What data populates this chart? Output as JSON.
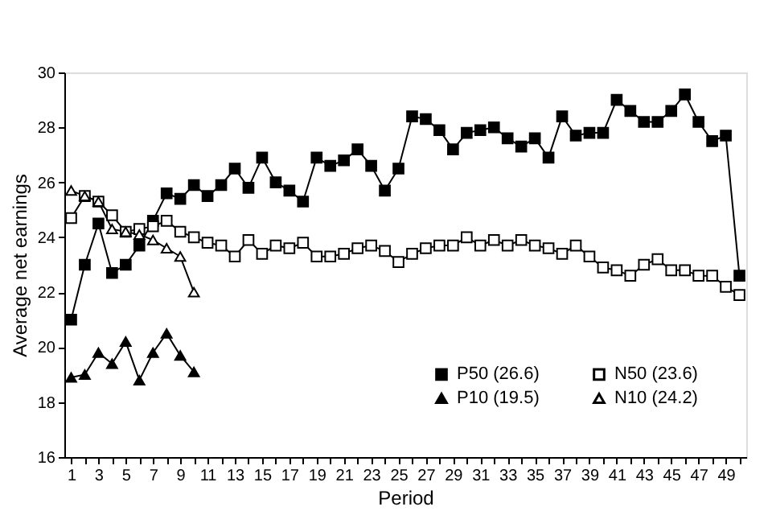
{
  "chart_data": {
    "type": "line",
    "xlabel": "Period",
    "ylabel": "Average net earnings",
    "xlim": [
      0.5,
      50.5
    ],
    "ylim": [
      16,
      30
    ],
    "yticks": [
      16,
      18,
      20,
      22,
      24,
      26,
      28,
      30
    ],
    "xticks": [
      1,
      {
        "value": 2,
        "label": null
      },
      3,
      {
        "value": 4,
        "label": null
      },
      5,
      {
        "value": 6,
        "label": null
      },
      7,
      {
        "value": 8,
        "label": null
      },
      9,
      {
        "value": 10,
        "label": null
      },
      11,
      {
        "value": 12,
        "label": null
      },
      13,
      {
        "value": 14,
        "label": null
      },
      15,
      {
        "value": 16,
        "label": null
      },
      17,
      {
        "value": 18,
        "label": null
      },
      19,
      {
        "value": 20,
        "label": null
      },
      21,
      {
        "value": 22,
        "label": null
      },
      23,
      {
        "value": 24,
        "label": null
      },
      25,
      {
        "value": 26,
        "label": null
      },
      27,
      {
        "value": 28,
        "label": null
      },
      29,
      {
        "value": 30,
        "label": null
      },
      31,
      {
        "value": 32,
        "label": null
      },
      33,
      {
        "value": 34,
        "label": null
      },
      35,
      {
        "value": 36,
        "label": null
      },
      37,
      {
        "value": 38,
        "label": null
      },
      39,
      {
        "value": 40,
        "label": null
      },
      41,
      {
        "value": 42,
        "label": null
      },
      43,
      {
        "value": 44,
        "label": null
      },
      45,
      {
        "value": 46,
        "label": null
      },
      47,
      {
        "value": 48,
        "label": null
      },
      49,
      {
        "value": 50,
        "label": null
      }
    ],
    "grid": false,
    "legend": "bottom right",
    "line_style": "solid",
    "series": [
      {
        "name": "P50 (26.6)",
        "color": "#000000",
        "marker": "square",
        "x": [
          1,
          2,
          3,
          4,
          5,
          6,
          7,
          8,
          9,
          10,
          11,
          12,
          13,
          14,
          15,
          16,
          17,
          18,
          19,
          20,
          21,
          22,
          23,
          24,
          25,
          26,
          27,
          28,
          29,
          30,
          31,
          32,
          33,
          34,
          35,
          36,
          37,
          38,
          39,
          40,
          41,
          42,
          43,
          44,
          45,
          46,
          47,
          48,
          49,
          50
        ],
        "values": [
          21.0,
          23.0,
          24.5,
          22.7,
          23.0,
          23.7,
          24.6,
          25.6,
          25.4,
          25.9,
          25.5,
          25.9,
          26.5,
          25.8,
          26.9,
          26.0,
          25.7,
          25.3,
          26.9,
          26.6,
          26.8,
          27.2,
          26.6,
          25.7,
          26.5,
          28.4,
          28.3,
          27.9,
          27.2,
          27.8,
          27.9,
          28.0,
          27.6,
          27.3,
          27.6,
          26.9,
          28.4,
          27.7,
          27.8,
          27.8,
          29.0,
          28.6,
          28.2,
          28.2,
          28.6,
          29.2,
          28.2,
          27.5,
          27.7,
          22.6
        ]
      },
      {
        "name": "P10 (19.5)",
        "color": "#000000",
        "marker": "triangle",
        "x": [
          1,
          2,
          3,
          4,
          5,
          6,
          7,
          8,
          9,
          10
        ],
        "values": [
          18.9,
          19.0,
          19.8,
          19.4,
          20.2,
          18.8,
          19.8,
          20.5,
          19.7,
          19.1
        ]
      },
      {
        "name": "N50 (23.6)",
        "color": "#ffffff",
        "marker": "square",
        "x": [
          1,
          2,
          3,
          4,
          5,
          6,
          7,
          8,
          9,
          10,
          11,
          12,
          13,
          14,
          15,
          16,
          17,
          18,
          19,
          20,
          21,
          22,
          23,
          24,
          25,
          26,
          27,
          28,
          29,
          30,
          31,
          32,
          33,
          34,
          35,
          36,
          37,
          38,
          39,
          40,
          41,
          42,
          43,
          44,
          45,
          46,
          47,
          48,
          49,
          50
        ],
        "values": [
          24.7,
          25.5,
          25.3,
          24.8,
          24.2,
          24.3,
          24.4,
          24.6,
          24.2,
          24.0,
          23.8,
          23.7,
          23.3,
          23.9,
          23.4,
          23.7,
          23.6,
          23.8,
          23.3,
          23.3,
          23.4,
          23.6,
          23.7,
          23.5,
          23.1,
          23.4,
          23.6,
          23.7,
          23.7,
          24.0,
          23.7,
          23.9,
          23.7,
          23.9,
          23.7,
          23.6,
          23.4,
          23.7,
          23.3,
          22.9,
          22.8,
          22.6,
          23.0,
          23.2,
          22.8,
          22.8,
          22.6,
          22.6,
          22.2,
          21.9
        ]
      },
      {
        "name": "N10 (24.2)",
        "color": "#ffffff",
        "marker": "triangle",
        "x": [
          1,
          2,
          3,
          4,
          5,
          6,
          7,
          8,
          9,
          10
        ],
        "values": [
          25.7,
          25.5,
          25.3,
          24.3,
          24.2,
          24.1,
          23.9,
          23.6,
          23.3,
          22.0
        ]
      }
    ]
  }
}
